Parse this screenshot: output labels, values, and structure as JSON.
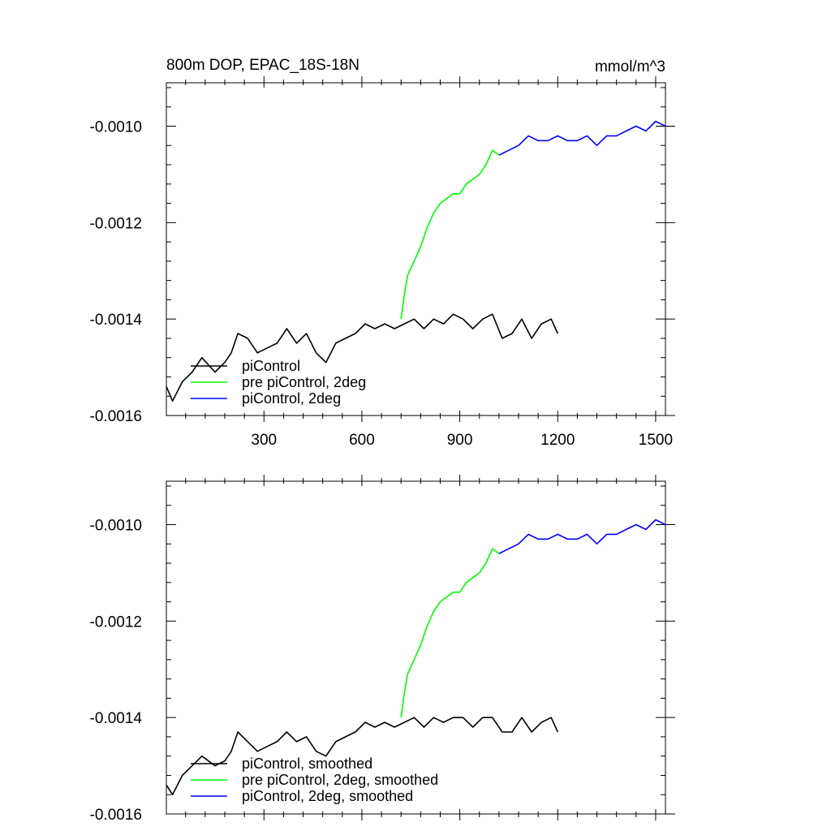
{
  "chart_data": [
    {
      "type": "line",
      "title": "800m DOP, EPAC_18S-18N",
      "units": "mmol/m^3",
      "xlabel": "",
      "ylabel": "",
      "xlim": [
        1,
        1530
      ],
      "ylim": [
        -0.0016,
        -0.00091
      ],
      "xticks": [
        300,
        600,
        900,
        1200,
        1500
      ],
      "xtick_labels": [
        "300",
        "600",
        "900",
        "1200",
        "1500"
      ],
      "yticks": [
        -0.0016,
        -0.0014,
        -0.0012,
        -0.001
      ],
      "ytick_labels": [
        "-0.0016",
        "-0.0014",
        "-0.0012",
        "-0.0010"
      ],
      "grid": false,
      "legend_position": "bottom-left",
      "series": [
        {
          "name": "piControl",
          "color": "#000000",
          "x": [
            1,
            20,
            50,
            80,
            110,
            150,
            180,
            200,
            220,
            250,
            280,
            310,
            340,
            370,
            400,
            430,
            460,
            490,
            520,
            550,
            580,
            610,
            640,
            670,
            700,
            730,
            760,
            790,
            820,
            850,
            880,
            910,
            940,
            970,
            1000,
            1030,
            1060,
            1090,
            1120,
            1150,
            1180,
            1200
          ],
          "y": [
            -0.00154,
            -0.00157,
            -0.00153,
            -0.00151,
            -0.00148,
            -0.00151,
            -0.00149,
            -0.00147,
            -0.00143,
            -0.00144,
            -0.00147,
            -0.00146,
            -0.00145,
            -0.00142,
            -0.00145,
            -0.00143,
            -0.00147,
            -0.00149,
            -0.00145,
            -0.00144,
            -0.00143,
            -0.00141,
            -0.00142,
            -0.00141,
            -0.00142,
            -0.00141,
            -0.0014,
            -0.00142,
            -0.0014,
            -0.00141,
            -0.00139,
            -0.0014,
            -0.00142,
            -0.0014,
            -0.00139,
            -0.00144,
            -0.00143,
            -0.0014,
            -0.00144,
            -0.00141,
            -0.0014,
            -0.00143
          ]
        },
        {
          "name": "pre piControl, 2deg",
          "color": "#00ff00",
          "x": [
            720,
            730,
            740,
            760,
            780,
            800,
            820,
            840,
            860,
            880,
            900,
            920,
            940,
            960,
            980,
            1000,
            1020
          ],
          "y": [
            -0.0014,
            -0.00135,
            -0.00131,
            -0.00128,
            -0.00125,
            -0.00121,
            -0.00118,
            -0.00116,
            -0.00115,
            -0.00114,
            -0.00114,
            -0.00112,
            -0.00111,
            -0.0011,
            -0.00108,
            -0.00105,
            -0.00106
          ]
        },
        {
          "name": "piControl, 2deg",
          "color": "#0000ff",
          "x": [
            1020,
            1050,
            1080,
            1110,
            1140,
            1170,
            1200,
            1230,
            1260,
            1290,
            1320,
            1350,
            1380,
            1410,
            1440,
            1470,
            1500,
            1530
          ],
          "y": [
            -0.00106,
            -0.00105,
            -0.00104,
            -0.00102,
            -0.00103,
            -0.00103,
            -0.00102,
            -0.00103,
            -0.00103,
            -0.00102,
            -0.00104,
            -0.00102,
            -0.00102,
            -0.00101,
            -0.001,
            -0.00101,
            -0.00099,
            -0.001
          ]
        }
      ]
    },
    {
      "type": "line",
      "title": "",
      "xlabel": "",
      "ylabel": "",
      "xlim": [
        1,
        1530
      ],
      "ylim": [
        -0.0016,
        -0.00091
      ],
      "xticks": [
        300,
        600,
        900,
        1200,
        1500
      ],
      "xtick_labels": [],
      "yticks": [
        -0.0016,
        -0.0014,
        -0.0012,
        -0.001
      ],
      "ytick_labels": [
        "-0.0016",
        "-0.0014",
        "-0.0012",
        "-0.0010"
      ],
      "grid": false,
      "legend_position": "bottom-left",
      "series": [
        {
          "name": "piControl, smoothed",
          "color": "#000000",
          "x": [
            1,
            20,
            50,
            80,
            110,
            150,
            180,
            200,
            220,
            250,
            280,
            310,
            340,
            370,
            400,
            430,
            460,
            490,
            520,
            550,
            580,
            610,
            640,
            670,
            700,
            730,
            760,
            790,
            820,
            850,
            880,
            910,
            940,
            970,
            1000,
            1030,
            1060,
            1090,
            1120,
            1150,
            1180,
            1200
          ],
          "y": [
            -0.00154,
            -0.00156,
            -0.00152,
            -0.0015,
            -0.00148,
            -0.0015,
            -0.00149,
            -0.00147,
            -0.00143,
            -0.00145,
            -0.00147,
            -0.00146,
            -0.00145,
            -0.00143,
            -0.00145,
            -0.00144,
            -0.00147,
            -0.00148,
            -0.00145,
            -0.00144,
            -0.00143,
            -0.00141,
            -0.00142,
            -0.00141,
            -0.00142,
            -0.00141,
            -0.0014,
            -0.00142,
            -0.0014,
            -0.00141,
            -0.0014,
            -0.0014,
            -0.00142,
            -0.0014,
            -0.0014,
            -0.00143,
            -0.00143,
            -0.0014,
            -0.00143,
            -0.00141,
            -0.0014,
            -0.00143
          ]
        },
        {
          "name": "pre piControl, 2deg, smoothed",
          "color": "#00ff00",
          "x": [
            720,
            730,
            740,
            760,
            780,
            800,
            820,
            840,
            860,
            880,
            900,
            920,
            940,
            960,
            980,
            1000,
            1020
          ],
          "y": [
            -0.0014,
            -0.00135,
            -0.00131,
            -0.00128,
            -0.00125,
            -0.00121,
            -0.00118,
            -0.00116,
            -0.00115,
            -0.00114,
            -0.00114,
            -0.00112,
            -0.00111,
            -0.0011,
            -0.00108,
            -0.00105,
            -0.00106
          ]
        },
        {
          "name": "piControl, 2deg, smoothed",
          "color": "#0000ff",
          "x": [
            1020,
            1050,
            1080,
            1110,
            1140,
            1170,
            1200,
            1230,
            1260,
            1290,
            1320,
            1350,
            1380,
            1410,
            1440,
            1470,
            1500,
            1530
          ],
          "y": [
            -0.00106,
            -0.00105,
            -0.00104,
            -0.00102,
            -0.00103,
            -0.00103,
            -0.00102,
            -0.00103,
            -0.00103,
            -0.00102,
            -0.00104,
            -0.00102,
            -0.00102,
            -0.00101,
            -0.001,
            -0.00101,
            -0.00099,
            -0.001
          ]
        }
      ]
    }
  ]
}
